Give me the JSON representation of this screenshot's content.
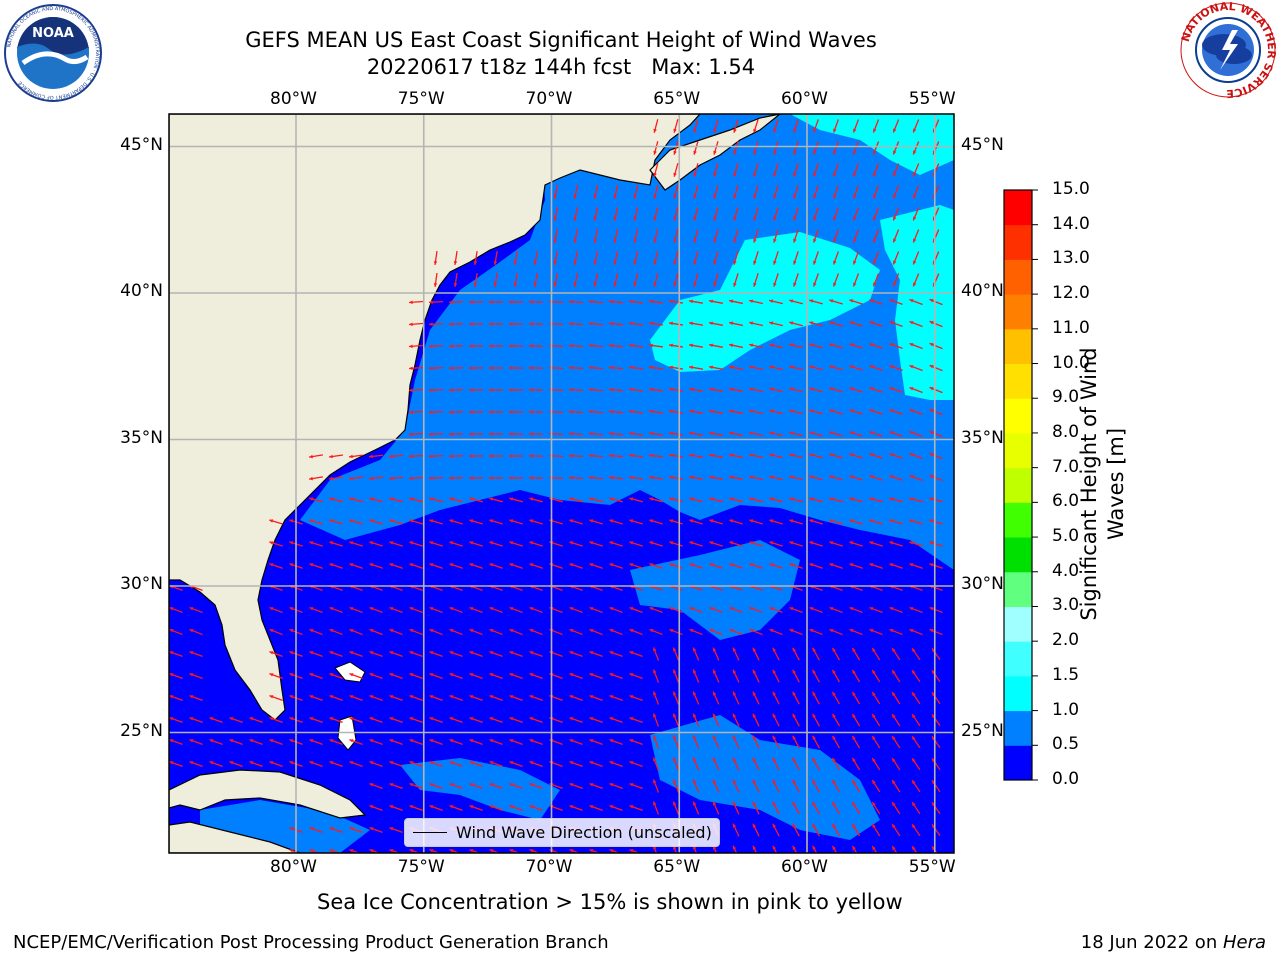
{
  "title": {
    "line1": "GEFS MEAN US East Coast Significant Height of Wind Waves",
    "line2": "20220617 t18z 144h fcst   Max: 1.54"
  },
  "logos": {
    "left": {
      "name": "noaa-logo",
      "text": "NOAA",
      "ring_text": "NATIONAL OCEANIC AND ATMOSPHERIC ADMINISTRATION · U.S. DEPARTMENT OF COMMERCE"
    },
    "right": {
      "name": "nws-logo",
      "ring_text": "NATIONAL WEATHER SERVICE"
    }
  },
  "map": {
    "lon_labels": [
      "80°W",
      "75°W",
      "70°W",
      "65°W",
      "60°W",
      "55°W"
    ],
    "lat_labels": [
      "45°N",
      "40°N",
      "35°N",
      "30°N",
      "25°N"
    ],
    "extent": {
      "lon": [
        -85,
        -54.3
      ],
      "lat": [
        20.5,
        45.8
      ]
    },
    "land_color": "#efeedc",
    "legend_label": "Wind Wave Direction (unscaled)",
    "arrow_color": "#ff1a1a"
  },
  "colorbar": {
    "label_line1": "Significant Height of Wind",
    "label_line2": "Waves [m]",
    "ticks": [
      "0.0",
      "0.5",
      "1.0",
      "1.5",
      "2.0",
      "3.0",
      "4.0",
      "5.0",
      "6.0",
      "7.0",
      "8.0",
      "9.0",
      "10.0",
      "11.0",
      "12.0",
      "13.0",
      "14.0",
      "15.0"
    ],
    "colors": [
      "#0000ff",
      "#0080ff",
      "#00ffff",
      "#40ffff",
      "#a0ffff",
      "#60ff80",
      "#00e000",
      "#40ff00",
      "#c0ff00",
      "#e8ff00",
      "#ffff00",
      "#ffe000",
      "#ffc000",
      "#ff8000",
      "#ff6000",
      "#ff3000",
      "#ff0000"
    ]
  },
  "caption": "Sea Ice Concentration > 15% is shown in pink to yellow",
  "footer": {
    "left": "NCEP/EMC/Verification Post Processing Product Generation Branch",
    "right_prefix": "18 Jun 2022 on ",
    "right_machine": "Hera"
  }
}
